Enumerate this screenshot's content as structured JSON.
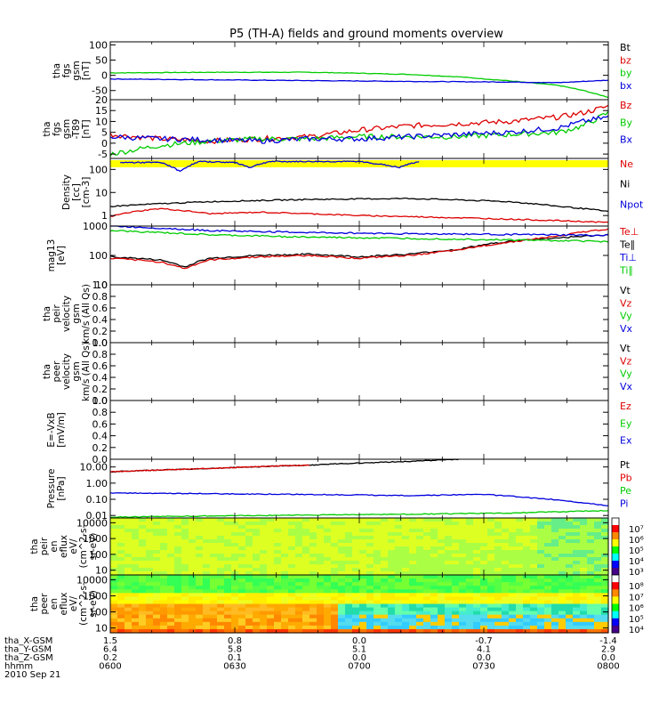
{
  "title": "P5 (TH-A) fields and ground moments overview",
  "colors": {
    "black": "#000000",
    "red": "#dd0000",
    "green": "#00cc00",
    "blue": "#0000dd",
    "yellow": "#ffff00"
  },
  "chart_data": [
    {
      "type": "line",
      "name": "fgs",
      "ylabel_lines": [
        "tha",
        "fgs",
        "gsm",
        "[nT]"
      ],
      "ylim": [
        -80,
        110
      ],
      "yticks": [
        100,
        50,
        0,
        -50
      ],
      "legend": [
        {
          "label": "Bt",
          "color": "#000000"
        },
        {
          "label": "bz",
          "color": "#dd0000"
        },
        {
          "label": "by",
          "color": "#00cc00"
        },
        {
          "label": "bx",
          "color": "#0000dd"
        }
      ],
      "series": [
        {
          "name": "by",
          "color": "#00cc00",
          "x": [
            0,
            0.2,
            0.4,
            0.5,
            0.6,
            0.7,
            0.8,
            0.9,
            0.95,
            1.0
          ],
          "y": [
            8,
            10,
            10,
            7,
            3,
            -5,
            -18,
            -33,
            -50,
            -72
          ]
        },
        {
          "name": "bx",
          "color": "#0000dd",
          "x": [
            0,
            0.3,
            0.6,
            0.8,
            0.9,
            1.0
          ],
          "y": [
            -12,
            -16,
            -20,
            -22,
            -24,
            -16
          ]
        }
      ]
    },
    {
      "type": "line",
      "name": "fgs-t89",
      "ylabel_lines": [
        "tha",
        "fgs",
        "gsm",
        "-T89",
        "[nT]"
      ],
      "ylim": [
        -7,
        20
      ],
      "yticks": [
        20,
        15,
        10,
        5,
        0,
        -5
      ],
      "legend": [
        {
          "label": "Bz",
          "color": "#dd0000"
        },
        {
          "label": "By",
          "color": "#00cc00"
        },
        {
          "label": "Bx",
          "color": "#0000dd"
        }
      ],
      "series": [
        {
          "name": "Bz",
          "color": "#dd0000",
          "x": [
            0,
            0.1,
            0.2,
            0.3,
            0.4,
            0.5,
            0.6,
            0.7,
            0.8,
            0.85,
            0.9,
            0.95,
            1.0
          ],
          "y": [
            4,
            2,
            1,
            2,
            3,
            6,
            8,
            9,
            10,
            11,
            12,
            14,
            17
          ]
        },
        {
          "name": "By",
          "color": "#00cc00",
          "x": [
            0,
            0.1,
            0.2,
            0.3,
            0.4,
            0.5,
            0.6,
            0.7,
            0.8,
            0.9,
            0.95,
            1.0
          ],
          "y": [
            -5,
            -1,
            1,
            2,
            2,
            3,
            3,
            3,
            4,
            5,
            8,
            14
          ]
        },
        {
          "name": "Bx",
          "color": "#0000dd",
          "x": [
            0,
            0.1,
            0.2,
            0.3,
            0.4,
            0.5,
            0.6,
            0.7,
            0.8,
            0.9,
            0.95,
            1.0
          ],
          "y": [
            3,
            2,
            1.5,
            1,
            2,
            2,
            3,
            4,
            5,
            7,
            10,
            12
          ]
        }
      ],
      "spikes": {
        "seed": 3,
        "amp": 1.2
      }
    },
    {
      "type": "line",
      "name": "density",
      "log": true,
      "ylabel_lines": [
        "Density",
        "[cc]",
        "[cm-3]"
      ],
      "ylim": [
        0.35,
        300
      ],
      "yticks": [
        100,
        10,
        1
      ],
      "yticklabels": [
        "100",
        "10",
        "1"
      ],
      "flagbar": true,
      "legend": [
        {
          "label": "Ne",
          "color": "#dd0000"
        },
        {
          "label": "Ni",
          "color": "#000000"
        },
        {
          "label": "Npot",
          "color": "#0000dd"
        }
      ],
      "series": [
        {
          "name": "Ni",
          "color": "#000000",
          "x": [
            0,
            0.2,
            0.4,
            0.6,
            0.8,
            0.9,
            1.0
          ],
          "y": [
            2.5,
            4,
            5,
            5.5,
            4,
            2.5,
            1.5
          ]
        },
        {
          "name": "Ne",
          "color": "#dd0000",
          "x": [
            0,
            0.05,
            0.1,
            0.2,
            0.3,
            0.4,
            0.5,
            0.6,
            0.7,
            0.8,
            0.9,
            1.0
          ],
          "y": [
            0.9,
            1.5,
            2.0,
            1.2,
            1.4,
            1.2,
            1.0,
            0.9,
            0.8,
            0.7,
            0.6,
            0.5
          ]
        },
        {
          "name": "Npot",
          "color": "#0000dd",
          "x": [
            0.02,
            0.1,
            0.14,
            0.18,
            0.25,
            0.28,
            0.32,
            0.5,
            0.58,
            0.62
          ],
          "y": [
            200,
            200,
            80,
            220,
            200,
            120,
            220,
            220,
            120,
            220
          ]
        }
      ]
    },
    {
      "type": "line",
      "name": "temperature",
      "log": true,
      "ylabel_lines": [
        "mag13",
        "[eV]"
      ],
      "ylim": [
        10,
        1000
      ],
      "yticks": [
        1000,
        100,
        10
      ],
      "yticklabels": [
        "1000",
        "100",
        "10"
      ],
      "legend": [
        {
          "label": "Te⊥",
          "color": "#dd0000"
        },
        {
          "label": "Te∥",
          "color": "#000000"
        },
        {
          "label": "Ti⊥",
          "color": "#0000dd"
        },
        {
          "label": "Ti∥",
          "color": "#00cc00"
        }
      ],
      "series": [
        {
          "name": "Te∥",
          "color": "#000000",
          "x": [
            0,
            0.1,
            0.15,
            0.2,
            0.3,
            0.4,
            0.5,
            0.6,
            0.7,
            0.8,
            0.9,
            1.0
          ],
          "y": [
            90,
            70,
            40,
            80,
            100,
            110,
            90,
            110,
            160,
            300,
            400,
            500
          ]
        },
        {
          "name": "Te⊥",
          "color": "#dd0000",
          "x": [
            0,
            0.1,
            0.15,
            0.2,
            0.3,
            0.4,
            0.5,
            0.6,
            0.7,
            0.8,
            0.9,
            1.0
          ],
          "y": [
            80,
            60,
            35,
            70,
            90,
            100,
            80,
            100,
            150,
            280,
            450,
            800
          ]
        },
        {
          "name": "Ti⊥",
          "color": "#0000dd",
          "x": [
            0,
            0.2,
            0.4,
            0.6,
            0.8,
            0.9,
            1.0
          ],
          "y": [
            1000,
            700,
            600,
            550,
            520,
            500,
            480
          ]
        },
        {
          "name": "Ti∥",
          "color": "#00cc00",
          "x": [
            0,
            0.2,
            0.4,
            0.6,
            0.8,
            0.9,
            1.0
          ],
          "y": [
            700,
            500,
            420,
            380,
            340,
            320,
            300
          ]
        }
      ]
    },
    {
      "type": "line",
      "name": "peir-velocity",
      "ylabel_lines": [
        "tha",
        "peir",
        "velocity",
        "gsm",
        "km/s (All Qs)"
      ],
      "ylim": [
        0,
        1
      ],
      "yticks": [
        1.0,
        0.8,
        0.6,
        0.4,
        0.2,
        0.0
      ],
      "yticklabels": [
        "1.0",
        "0.8",
        "0.6",
        "0.4",
        "0.2",
        "0.0"
      ],
      "legend": [
        {
          "label": "Vt",
          "color": "#000000"
        },
        {
          "label": "Vz",
          "color": "#dd0000"
        },
        {
          "label": "Vy",
          "color": "#00cc00"
        },
        {
          "label": "Vx",
          "color": "#0000dd"
        }
      ],
      "series": []
    },
    {
      "type": "line",
      "name": "peer-velocity",
      "ylabel_lines": [
        "tha",
        "peer",
        "velocity",
        "gsm",
        "km/s (All Qs)"
      ],
      "ylim": [
        0,
        1
      ],
      "yticks": [
        1.0,
        0.8,
        0.6,
        0.4,
        0.2,
        0.0
      ],
      "yticklabels": [
        "1.0",
        "0.8",
        "0.6",
        "0.4",
        "0.2",
        "0.0"
      ],
      "legend": [
        {
          "label": "Vt",
          "color": "#000000"
        },
        {
          "label": "Vz",
          "color": "#dd0000"
        },
        {
          "label": "Vy",
          "color": "#00cc00"
        },
        {
          "label": "Vx",
          "color": "#0000dd"
        }
      ],
      "series": []
    },
    {
      "type": "line",
      "name": "e-field",
      "ylabel_lines": [
        "E=-VxB",
        "[mV/m]"
      ],
      "ylim": [
        0,
        1
      ],
      "yticks": [
        1.0,
        0.8,
        0.6,
        0.4,
        0.2,
        0.0
      ],
      "yticklabels": [
        "1.0",
        "0.8",
        "0.6",
        "0.4",
        "0.2",
        "0.0"
      ],
      "legend": [
        {
          "label": "Ez",
          "color": "#dd0000"
        },
        {
          "label": "Ey",
          "color": "#00cc00"
        },
        {
          "label": "Ex",
          "color": "#0000dd"
        }
      ],
      "series": []
    },
    {
      "type": "line",
      "name": "pressure",
      "log": true,
      "ylabel_lines": [
        "Pressure",
        "[nPa]"
      ],
      "ylim": [
        0.007,
        30
      ],
      "yticks": [
        10,
        1,
        0.1,
        0.01
      ],
      "yticklabels": [
        "10.00",
        "1.00",
        "0.10",
        "0.01"
      ],
      "legend": [
        {
          "label": "Pt",
          "color": "#000000"
        },
        {
          "label": "Pb",
          "color": "#dd0000"
        },
        {
          "label": "Pe",
          "color": "#00cc00"
        },
        {
          "label": "Pi",
          "color": "#0000dd"
        }
      ],
      "series": [
        {
          "name": "Pt",
          "color": "#000000",
          "x": [
            0,
            0.2,
            0.4,
            0.6,
            0.7
          ],
          "y": [
            5,
            8,
            13,
            22,
            30
          ]
        },
        {
          "name": "Pb",
          "color": "#dd0000",
          "x": [
            0,
            0.2,
            0.4
          ],
          "y": [
            5,
            8,
            13
          ]
        },
        {
          "name": "Pi",
          "color": "#0000dd",
          "x": [
            0,
            0.2,
            0.4,
            0.6,
            0.75,
            0.85,
            0.95,
            1.0
          ],
          "y": [
            0.25,
            0.22,
            0.2,
            0.17,
            0.2,
            0.12,
            0.06,
            0.04
          ]
        },
        {
          "name": "Pe",
          "color": "#00cc00",
          "x": [
            0,
            0.3,
            0.6,
            0.8,
            1.0
          ],
          "y": [
            0.008,
            0.01,
            0.012,
            0.014,
            0.02
          ]
        }
      ]
    },
    {
      "type": "heatmap",
      "name": "peir-eflux",
      "log": true,
      "ylabel_lines": [
        "tha",
        "peir",
        "en",
        "eflux",
        "eV/",
        "(cm^2-s-",
        "sr-eV)"
      ],
      "ylim": [
        5,
        20000
      ],
      "yticks": [
        10000,
        1000,
        100,
        10
      ],
      "yticklabels": [
        "10000",
        "1000",
        "100",
        "10"
      ],
      "colorbar_ticks": [
        "10⁷",
        "10⁶",
        "10⁵",
        "10⁴",
        "10³"
      ],
      "profile": "ion"
    },
    {
      "type": "heatmap",
      "name": "peer-eflux",
      "log": true,
      "ylabel_lines": [
        "tha",
        "peer",
        "en",
        "eflux",
        "eV/",
        "(cm^2-s-",
        "sr-eV)"
      ],
      "ylim": [
        5,
        20000
      ],
      "yticks": [
        10000,
        1000,
        100,
        10
      ],
      "yticklabels": [
        "10000",
        "1000",
        "100",
        "10"
      ],
      "colorbar_ticks": [
        "10⁸",
        "10⁷",
        "10⁶",
        "10⁵",
        "10⁴"
      ],
      "profile": "electron"
    }
  ],
  "xaxis": {
    "rows": [
      {
        "label": "tha_X-GSM",
        "values": [
          "1.5",
          "0.8",
          "0.0",
          "-0.7",
          "-1.4"
        ]
      },
      {
        "label": "tha_Y-GSM",
        "values": [
          "6.4",
          "5.8",
          "5.1",
          "4.1",
          "2.9"
        ]
      },
      {
        "label": "tha_Z-GSM",
        "values": [
          "0.2",
          "0.1",
          "0.0",
          "0.0",
          "0.0"
        ]
      },
      {
        "label": "hhmm",
        "values": [
          "0600",
          "0630",
          "0700",
          "0730",
          "0800"
        ]
      }
    ],
    "date": "2010 Sep 21"
  }
}
